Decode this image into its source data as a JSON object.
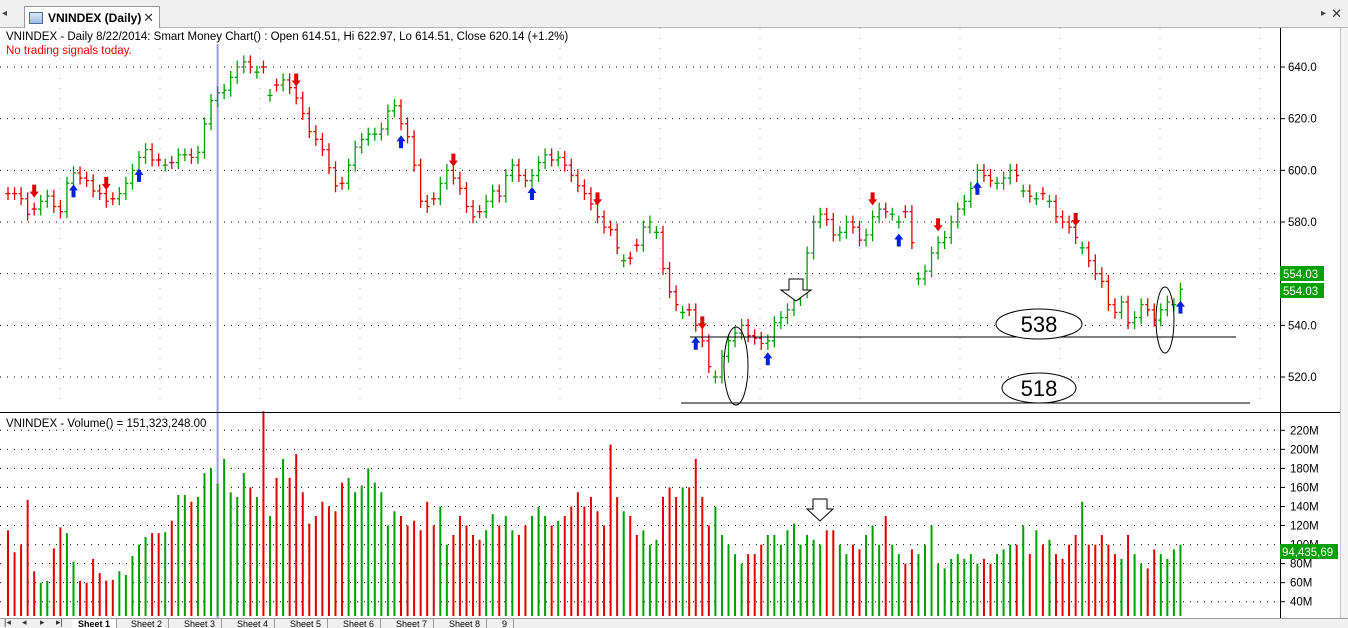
{
  "window": {
    "tab_title": "VNINDEX (Daily)",
    "close_glyph": "✕",
    "scroll_left_glyph": "◂",
    "scroll_right_glyph": "▸",
    "window_close_glyph": "✕"
  },
  "price_pane": {
    "title": "VNINDEX - Daily 8/22/2014: Smart Money Chart() : Open 614.51, Hi 622.97, Lo 614.51, Close 620.14 (+1.2%)",
    "signal_text": "No trading signals today.",
    "last_price_label": "554.03",
    "last_price_label_2": "554.03",
    "ellipse_labels": [
      "538",
      "518"
    ]
  },
  "volume_pane": {
    "title_symbol": "VNINDEX",
    "title_rest": " - Volume() = 151,323,248.00",
    "last_volume_label": "94,435,69"
  },
  "sheets": [
    "Sheet 1",
    "Sheet 2",
    "Sheet 3",
    "Sheet 4",
    "Sheet 5",
    "Sheet 6",
    "Sheet 7",
    "Sheet 8",
    "9"
  ],
  "colors": {
    "up": "#00a000",
    "down": "#e00000",
    "buy_arrow": "#0020e0",
    "sell_arrow": "#e00000",
    "signal_text": "#ff0000",
    "price_tag": "#00a000",
    "cursor_line": "#9999ee"
  },
  "chart_data": [
    {
      "type": "ohlc",
      "title": "VNINDEX - Daily 8/22/2014: Smart Money Chart() : Open 614.51, Hi 622.97, Lo 614.51, Close 620.14 (+1.2%)",
      "y_ticks": [
        520,
        540,
        560,
        580,
        600,
        620,
        640
      ],
      "ylim": [
        508,
        652
      ],
      "grid": true,
      "close": [
        591,
        591,
        589,
        583,
        585,
        588,
        590,
        586,
        584,
        595,
        599,
        597,
        596,
        592,
        591,
        588,
        589,
        591,
        595,
        600,
        605,
        608,
        604,
        604,
        602,
        603,
        606,
        606,
        605,
        607,
        618,
        627,
        630,
        631,
        636,
        640,
        642,
        640,
        638,
        640,
        629,
        633,
        635,
        632,
        628,
        622,
        615,
        612,
        608,
        601,
        594,
        595,
        602,
        609,
        612,
        614,
        614,
        616,
        623,
        625,
        618,
        613,
        602,
        588,
        586,
        589,
        595,
        600,
        597,
        593,
        586,
        582,
        584,
        588,
        592,
        590,
        598,
        602,
        598,
        596,
        598,
        603,
        606,
        604,
        605,
        602,
        598,
        594,
        591,
        587,
        582,
        578,
        577,
        570,
        565,
        566,
        571,
        578,
        580,
        576,
        562,
        553,
        548,
        545,
        546,
        540,
        534,
        524,
        520,
        528,
        534,
        537,
        540,
        536,
        535,
        533,
        534,
        541,
        543,
        546,
        550,
        553,
        568,
        580,
        583,
        581,
        575,
        576,
        580,
        578,
        573,
        575,
        582,
        585,
        584,
        583,
        580,
        584,
        572,
        558,
        561,
        568,
        572,
        574,
        580,
        585,
        588,
        593,
        600,
        598,
        596,
        595,
        597,
        600,
        598,
        592,
        590,
        589,
        591,
        588,
        582,
        580,
        578,
        574,
        570,
        565,
        560,
        557,
        548,
        545,
        549,
        541,
        543,
        548,
        546,
        542,
        546,
        549,
        548,
        554
      ],
      "up_days": [
        5,
        6,
        9,
        10,
        17,
        18,
        19,
        20,
        21,
        24,
        26,
        27,
        29,
        30,
        31,
        32,
        33,
        34,
        35,
        36,
        38,
        40,
        42,
        52,
        53,
        54,
        55,
        56,
        57,
        58,
        59,
        66,
        67,
        73,
        74,
        76,
        77,
        80,
        81,
        82,
        84,
        94,
        97,
        98,
        99,
        103,
        108,
        109,
        110,
        111,
        112,
        116,
        117,
        118,
        119,
        120,
        121,
        122,
        123,
        124,
        127,
        128,
        131,
        132,
        133,
        135,
        136,
        139,
        140,
        141,
        142,
        143,
        144,
        145,
        146,
        147,
        148,
        151,
        152,
        153,
        155,
        157,
        159,
        164,
        170,
        172,
        173,
        176,
        177,
        178,
        179
      ],
      "buy_arrow_days": [
        10,
        20,
        60,
        80,
        105,
        116,
        136,
        148,
        180
      ],
      "sell_arrow_days": [
        4,
        15,
        44,
        68,
        90,
        106,
        132,
        142,
        163
      ]
    },
    {
      "type": "bar",
      "title": "VNINDEX - Volume() = 151,323,248.00",
      "y_ticks_labels": [
        "40M",
        "60M",
        "80M",
        "100M",
        "120M",
        "140M",
        "160M",
        "180M",
        "200M",
        "220M"
      ],
      "y_ticks_values": [
        40,
        60,
        80,
        100,
        120,
        140,
        160,
        180,
        200,
        220
      ],
      "ylim": [
        25,
        235
      ],
      "unit": "M",
      "values": [
        115,
        92,
        100,
        147,
        72,
        60,
        62,
        96,
        118,
        112,
        82,
        62,
        60,
        85,
        70,
        62,
        63,
        72,
        68,
        88,
        100,
        108,
        112,
        112,
        113,
        125,
        152,
        152,
        145,
        150,
        175,
        180,
        164,
        190,
        155,
        150,
        175,
        160,
        150,
        240,
        130,
        170,
        190,
        170,
        195,
        155,
        122,
        130,
        145,
        140,
        135,
        165,
        170,
        155,
        162,
        180,
        165,
        155,
        120,
        135,
        130,
        120,
        125,
        115,
        145,
        120,
        140,
        100,
        110,
        130,
        120,
        110,
        105,
        115,
        132,
        120,
        130,
        115,
        110,
        120,
        130,
        140,
        130,
        120,
        125,
        130,
        140,
        155,
        140,
        150,
        135,
        120,
        205,
        150,
        135,
        130,
        110,
        115,
        100,
        105,
        150,
        160,
        150,
        160,
        160,
        190,
        150,
        120,
        140,
        110,
        100,
        90,
        80,
        90,
        90,
        100,
        110,
        110,
        100,
        115,
        122,
        100,
        110,
        105,
        100,
        115,
        115,
        100,
        90,
        100,
        95,
        110,
        120,
        100,
        130,
        100,
        90,
        80,
        95,
        90,
        100,
        120,
        80,
        75,
        85,
        90,
        85,
        90,
        80,
        85,
        80,
        90,
        95,
        100,
        100,
        120,
        90,
        115,
        100,
        105,
        90,
        85,
        100,
        110,
        145,
        100,
        100,
        110,
        100,
        90,
        85,
        110,
        90,
        80,
        75,
        95,
        90,
        85,
        95,
        100
      ],
      "up_days": [
        5,
        6,
        9,
        10,
        17,
        18,
        19,
        20,
        21,
        24,
        26,
        27,
        29,
        30,
        31,
        32,
        33,
        34,
        35,
        36,
        38,
        40,
        42,
        52,
        53,
        54,
        55,
        56,
        57,
        58,
        59,
        66,
        67,
        73,
        74,
        76,
        77,
        80,
        81,
        82,
        84,
        94,
        97,
        98,
        99,
        103,
        108,
        109,
        110,
        111,
        112,
        116,
        117,
        118,
        119,
        120,
        121,
        122,
        123,
        124,
        127,
        128,
        131,
        132,
        133,
        135,
        136,
        139,
        140,
        141,
        142,
        143,
        144,
        145,
        146,
        147,
        148,
        151,
        152,
        153,
        155,
        157,
        159,
        164,
        170,
        172,
        173,
        176,
        177,
        178,
        179
      ]
    }
  ]
}
